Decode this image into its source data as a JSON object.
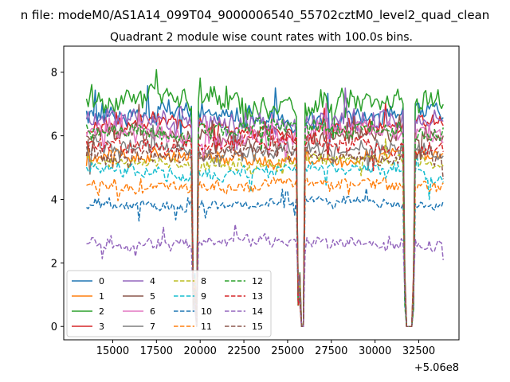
{
  "chart_data": {
    "type": "line",
    "suptitle": "n file: modeM0/AS1A14_099T04_9000006540_55702cztM0_level2_quad_clean",
    "title": "Quadrant 2 module wise count rates with 100.0s bins.",
    "xlabel": "",
    "ylabel": "",
    "x_offset_label": "+5.06e8",
    "xlim": [
      12200,
      34800
    ],
    "ylim": [
      -0.42,
      8.82
    ],
    "x_range": [
      13500,
      33900
    ],
    "bin": 100,
    "gaps": [
      [
        19580,
        19730
      ],
      [
        19730,
        19880
      ],
      [
        25600,
        25750
      ],
      [
        25750,
        26000
      ],
      [
        31650,
        31800
      ],
      [
        31800,
        32150
      ],
      [
        32150,
        32300
      ]
    ],
    "gap_zero": [
      [
        19730,
        19880
      ],
      [
        25750,
        26000
      ],
      [
        31800,
        32150
      ]
    ],
    "x_ticks": [
      15000,
      17500,
      20000,
      22500,
      25000,
      27500,
      30000,
      32500
    ],
    "x_tick_labels": [
      "15000",
      "17500",
      "20000",
      "22500",
      "25000",
      "27500",
      "30000",
      "32500"
    ],
    "y_ticks": [
      0,
      2,
      4,
      6,
      8
    ],
    "y_tick_labels": [
      "0",
      "2",
      "4",
      "6",
      "8"
    ],
    "legend_position": "lower-left",
    "series": [
      {
        "name": "0",
        "mean": 6.65,
        "noise": 0.32,
        "color": "#1f77b4",
        "dash": "solid"
      },
      {
        "name": "1",
        "mean": 5.3,
        "noise": 0.22,
        "color": "#ff7f0e",
        "dash": "solid"
      },
      {
        "name": "2",
        "mean": 7.05,
        "noise": 0.4,
        "color": "#2ca02c",
        "dash": "solid"
      },
      {
        "name": "3",
        "mean": 6.25,
        "noise": 0.3,
        "color": "#d62728",
        "dash": "solid"
      },
      {
        "name": "4",
        "mean": 6.45,
        "noise": 0.32,
        "color": "#9467bd",
        "dash": "solid"
      },
      {
        "name": "5",
        "mean": 5.95,
        "noise": 0.28,
        "color": "#8c564b",
        "dash": "solid"
      },
      {
        "name": "6",
        "mean": 6.05,
        "noise": 0.3,
        "color": "#e377c2",
        "dash": "solid"
      },
      {
        "name": "7",
        "mean": 5.55,
        "noise": 0.25,
        "color": "#7f7f7f",
        "dash": "solid"
      },
      {
        "name": "8",
        "mean": 5.15,
        "noise": 0.22,
        "color": "#bcbd22",
        "dash": "dashed"
      },
      {
        "name": "9",
        "mean": 4.85,
        "noise": 0.22,
        "color": "#17becf",
        "dash": "dashed"
      },
      {
        "name": "10",
        "mean": 3.85,
        "noise": 0.18,
        "color": "#1f77b4",
        "dash": "dashed"
      },
      {
        "name": "11",
        "mean": 4.45,
        "noise": 0.2,
        "color": "#ff7f0e",
        "dash": "dashed"
      },
      {
        "name": "12",
        "mean": 6.2,
        "noise": 0.28,
        "color": "#2ca02c",
        "dash": "dashed"
      },
      {
        "name": "13",
        "mean": 5.75,
        "noise": 0.26,
        "color": "#d62728",
        "dash": "dashed"
      },
      {
        "name": "14",
        "mean": 2.65,
        "noise": 0.2,
        "color": "#9467bd",
        "dash": "dashed"
      },
      {
        "name": "15",
        "mean": 5.4,
        "noise": 0.24,
        "color": "#8c564b",
        "dash": "dashed"
      }
    ]
  }
}
